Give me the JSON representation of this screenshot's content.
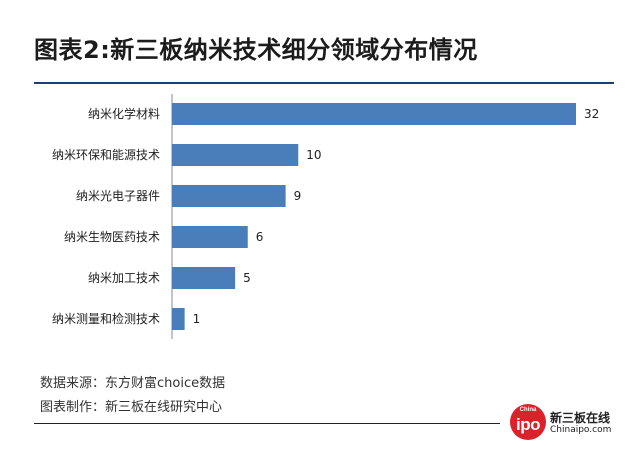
{
  "title": "图表2:新三板纳米技术细分领域分布情况",
  "chart_data": {
    "type": "bar",
    "orientation": "horizontal",
    "categories": [
      "纳米化学材料",
      "纳米环保和能源技术",
      "纳米光电子器件",
      "纳米生物医药技术",
      "纳米加工技术",
      "纳米测量和检测技术"
    ],
    "values": [
      32,
      10,
      9,
      6,
      5,
      1
    ],
    "xlim": [
      0,
      32
    ],
    "grid": false,
    "legend": "none",
    "bar_color": "#4a7ebb"
  },
  "footer": {
    "source": "数据来源：东方财富choice数据",
    "maker": "图表制作：新三板在线研究中心"
  },
  "logo": {
    "circle_small": "China",
    "circle_big": "ipo",
    "name": "新三板在线",
    "url": "Chinaipo.com"
  },
  "colors": {
    "accent": "#4a7ebb",
    "title_rule": "#1f3f6e",
    "logo_red": "#d9222a"
  }
}
